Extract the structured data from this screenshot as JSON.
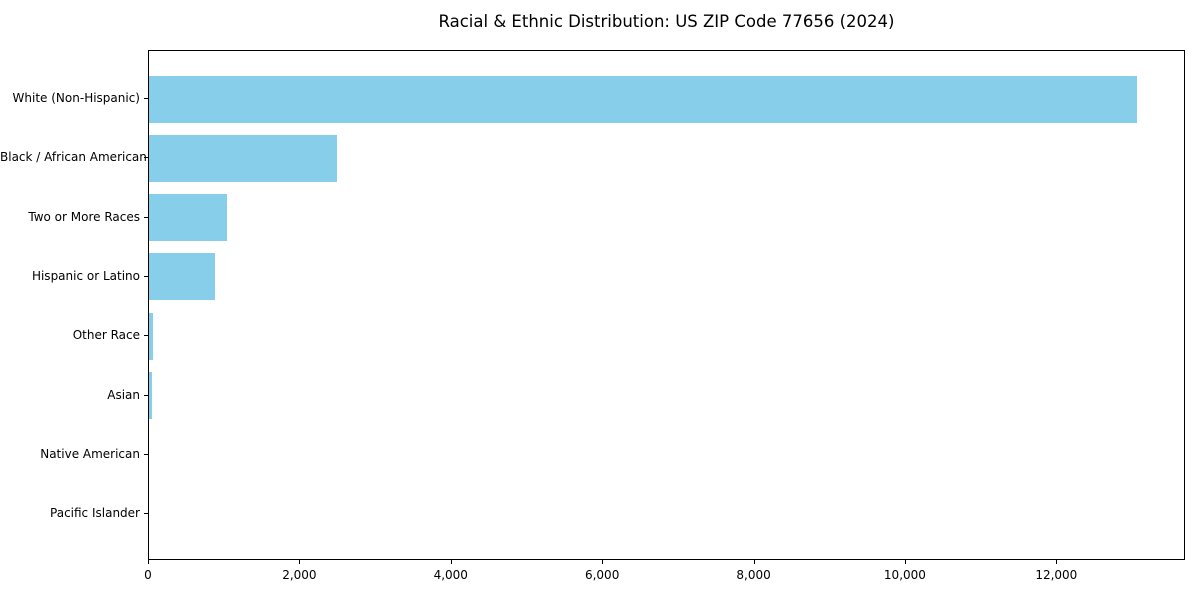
{
  "title": "Racial & Ethnic Distribution: US ZIP Code 77656 (2024)",
  "colors": {
    "bar": "#87CEEB",
    "axis": "#000000",
    "text": "#000000",
    "background": "#FFFFFF"
  },
  "chart_data": {
    "type": "bar",
    "orientation": "horizontal",
    "title": "Racial & Ethnic Distribution: US ZIP Code 77656 (2024)",
    "xlabel": "",
    "ylabel": "",
    "categories": [
      "White (Non-Hispanic)",
      "Black / African American",
      "Two or More Races",
      "Hispanic or Latino",
      "Other Race",
      "Asian",
      "Native American",
      "Pacific Islander"
    ],
    "values": [
      13050,
      2490,
      1030,
      875,
      50,
      40,
      0,
      0
    ],
    "xlim": [
      0,
      13700
    ],
    "x_ticks": [
      0,
      2000,
      4000,
      6000,
      8000,
      10000,
      12000
    ],
    "x_tick_labels": [
      "0",
      "2,000",
      "4,000",
      "6,000",
      "8,000",
      "10,000",
      "12,000"
    ],
    "bar_color": "#87CEEB",
    "grid": false,
    "legend": null
  }
}
